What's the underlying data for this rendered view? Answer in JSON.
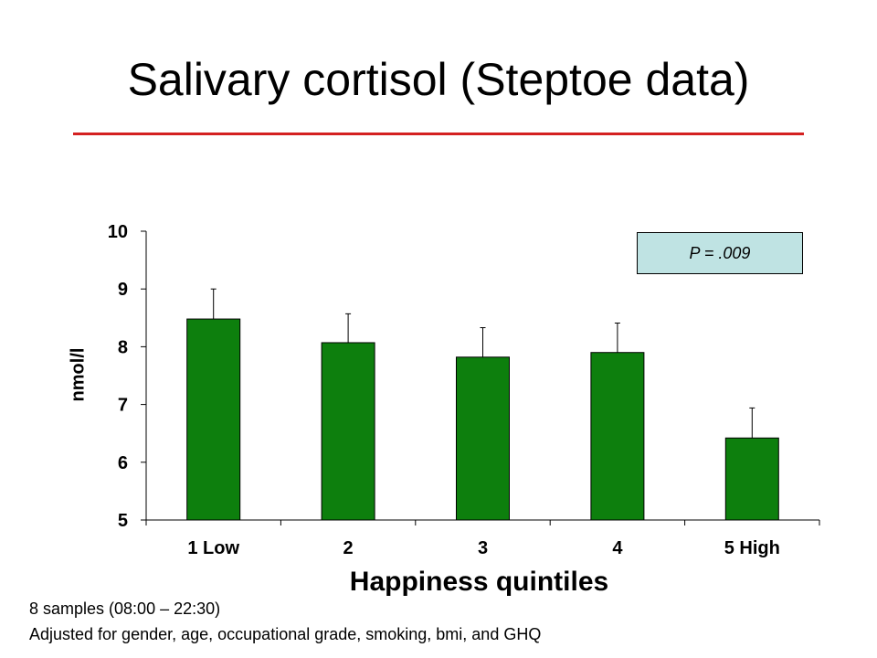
{
  "slide": {
    "title": "Salivary cortisol (Steptoe data)",
    "accent_color": "#d42020",
    "notes": [
      "8 samples (08:00 – 22:30)",
      "Adjusted for gender, age, occupational grade, smoking, bmi, and GHQ"
    ]
  },
  "chart_data": {
    "type": "bar",
    "title": "",
    "xlabel": "Happiness quintiles",
    "ylabel": "nmol/l",
    "categories": [
      "1 Low",
      "2",
      "3",
      "4",
      "5 High"
    ],
    "values": [
      8.48,
      8.07,
      7.82,
      7.9,
      6.42
    ],
    "error_upper": [
      9.0,
      8.57,
      8.33,
      8.41,
      6.94
    ],
    "ylim": [
      5,
      10
    ],
    "yticks": [
      5,
      6,
      7,
      8,
      9,
      10
    ],
    "bar_color": "#0d7f0d",
    "grid": false,
    "annotation": {
      "text": "P = .009",
      "placement": "top-right",
      "fill": "#bfe3e3"
    }
  }
}
